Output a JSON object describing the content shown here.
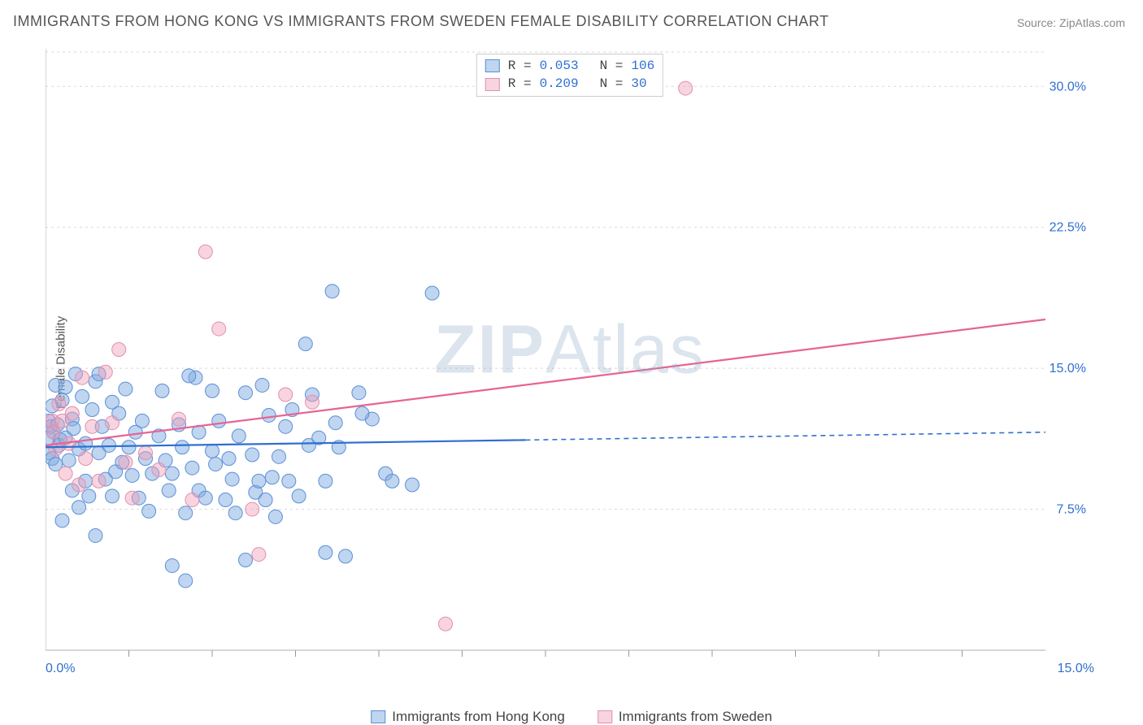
{
  "title": "IMMIGRANTS FROM HONG KONG VS IMMIGRANTS FROM SWEDEN FEMALE DISABILITY CORRELATION CHART",
  "source": "Source: ZipAtlas.com",
  "y_axis_label": "Female Disability",
  "watermark": {
    "part1": "ZIP",
    "part2": "Atlas"
  },
  "chart": {
    "type": "scatter",
    "background_color": "#ffffff",
    "grid_color": "#d8d8d8",
    "border_color": "#bfbfbf",
    "tick_color": "#999",
    "xlim": [
      0,
      15
    ],
    "ylim": [
      0,
      32
    ],
    "x_ticks_labeled": [
      {
        "v": 0.0,
        "label": "0.0%"
      },
      {
        "v": 15.0,
        "label": "15.0%"
      }
    ],
    "x_ticks_minor": [
      1.25,
      2.5,
      3.75,
      5.0,
      6.25,
      7.5,
      8.75,
      10.0,
      11.25,
      12.5,
      13.75
    ],
    "y_ticks": [
      {
        "v": 7.5,
        "label": "7.5%"
      },
      {
        "v": 15.0,
        "label": "15.0%"
      },
      {
        "v": 22.5,
        "label": "22.5%"
      },
      {
        "v": 30.0,
        "label": "30.0%"
      }
    ],
    "series": [
      {
        "name": "Immigrants from Hong Kong",
        "key": "hk",
        "fill": "rgba(128,171,226,0.5)",
        "stroke": "#5c8fd6",
        "trend_color": "#2f6fd0",
        "r": 0.053,
        "n": 106,
        "trend_start": {
          "x": 0,
          "y": 10.8
        },
        "trend_end": {
          "x": 15,
          "y": 11.6
        },
        "solid_until_x": 7.2,
        "points": [
          [
            0.05,
            11.3
          ],
          [
            0.05,
            10.5
          ],
          [
            0.05,
            12.2
          ],
          [
            0.08,
            11.9
          ],
          [
            0.1,
            10.2
          ],
          [
            0.1,
            13.0
          ],
          [
            0.12,
            11.6
          ],
          [
            0.15,
            9.9
          ],
          [
            0.15,
            14.1
          ],
          [
            0.18,
            12.0
          ],
          [
            0.2,
            10.9
          ],
          [
            0.22,
            11.2
          ],
          [
            0.25,
            13.3
          ],
          [
            0.25,
            6.9
          ],
          [
            0.3,
            14.0
          ],
          [
            0.3,
            11.3
          ],
          [
            0.35,
            10.1
          ],
          [
            0.4,
            12.3
          ],
          [
            0.4,
            8.5
          ],
          [
            0.42,
            11.8
          ],
          [
            0.45,
            14.7
          ],
          [
            0.5,
            10.7
          ],
          [
            0.5,
            7.6
          ],
          [
            0.55,
            13.5
          ],
          [
            0.6,
            11.0
          ],
          [
            0.6,
            9.0
          ],
          [
            0.65,
            8.2
          ],
          [
            0.7,
            12.8
          ],
          [
            0.75,
            14.3
          ],
          [
            0.75,
            6.1
          ],
          [
            0.8,
            14.7
          ],
          [
            0.8,
            10.5
          ],
          [
            0.85,
            11.9
          ],
          [
            0.9,
            9.1
          ],
          [
            0.95,
            10.9
          ],
          [
            1.0,
            13.2
          ],
          [
            1.0,
            8.2
          ],
          [
            1.05,
            9.5
          ],
          [
            1.1,
            12.6
          ],
          [
            1.15,
            10.0
          ],
          [
            1.2,
            13.9
          ],
          [
            1.25,
            10.8
          ],
          [
            1.3,
            9.3
          ],
          [
            1.35,
            11.6
          ],
          [
            1.4,
            8.1
          ],
          [
            1.45,
            12.2
          ],
          [
            1.5,
            10.2
          ],
          [
            1.55,
            7.4
          ],
          [
            1.6,
            9.4
          ],
          [
            1.7,
            11.4
          ],
          [
            1.75,
            13.8
          ],
          [
            1.8,
            10.1
          ],
          [
            1.85,
            8.5
          ],
          [
            1.9,
            9.4
          ],
          [
            1.9,
            4.5
          ],
          [
            2.0,
            12.0
          ],
          [
            2.05,
            10.8
          ],
          [
            2.1,
            7.3
          ],
          [
            2.1,
            3.7
          ],
          [
            2.2,
            9.7
          ],
          [
            2.25,
            14.5
          ],
          [
            2.3,
            11.6
          ],
          [
            2.3,
            8.5
          ],
          [
            2.4,
            8.1
          ],
          [
            2.5,
            10.6
          ],
          [
            2.5,
            13.8
          ],
          [
            2.55,
            9.9
          ],
          [
            2.6,
            12.2
          ],
          [
            2.7,
            8.0
          ],
          [
            2.75,
            10.2
          ],
          [
            2.8,
            9.1
          ],
          [
            2.85,
            7.3
          ],
          [
            2.9,
            11.4
          ],
          [
            3.0,
            13.7
          ],
          [
            3.0,
            4.8
          ],
          [
            3.1,
            10.4
          ],
          [
            3.15,
            8.4
          ],
          [
            3.2,
            9.0
          ],
          [
            3.3,
            8.0
          ],
          [
            3.35,
            12.5
          ],
          [
            3.4,
            9.2
          ],
          [
            3.45,
            7.1
          ],
          [
            3.5,
            10.3
          ],
          [
            3.6,
            11.9
          ],
          [
            3.65,
            9.0
          ],
          [
            3.7,
            12.8
          ],
          [
            3.8,
            8.2
          ],
          [
            3.9,
            16.3
          ],
          [
            3.95,
            10.9
          ],
          [
            4.0,
            13.6
          ],
          [
            4.1,
            11.3
          ],
          [
            4.2,
            9.0
          ],
          [
            4.2,
            5.2
          ],
          [
            4.3,
            19.1
          ],
          [
            4.35,
            12.1
          ],
          [
            4.4,
            10.8
          ],
          [
            4.5,
            5.0
          ],
          [
            4.9,
            12.3
          ],
          [
            5.1,
            9.4
          ],
          [
            5.2,
            9.0
          ],
          [
            5.5,
            8.8
          ],
          [
            5.8,
            19.0
          ],
          [
            4.7,
            13.7
          ],
          [
            4.75,
            12.6
          ],
          [
            3.25,
            14.1
          ],
          [
            2.15,
            14.6
          ]
        ]
      },
      {
        "name": "Immigrants from Sweden",
        "key": "se",
        "fill": "rgba(240,160,185,0.45)",
        "stroke": "#e090af",
        "trend_color": "#e66493",
        "r": 0.209,
        "n": 30,
        "trend_start": {
          "x": 0,
          "y": 10.9
        },
        "trend_end": {
          "x": 15,
          "y": 17.6
        },
        "solid_until_x": 15,
        "points": [
          [
            0.1,
            12.2
          ],
          [
            0.12,
            11.6
          ],
          [
            0.15,
            10.7
          ],
          [
            0.2,
            13.1
          ],
          [
            0.25,
            12.2
          ],
          [
            0.3,
            9.4
          ],
          [
            0.35,
            11.0
          ],
          [
            0.4,
            12.6
          ],
          [
            0.5,
            8.8
          ],
          [
            0.55,
            14.5
          ],
          [
            0.6,
            10.2
          ],
          [
            0.7,
            11.9
          ],
          [
            0.8,
            9.0
          ],
          [
            0.9,
            14.8
          ],
          [
            1.0,
            12.1
          ],
          [
            1.1,
            16.0
          ],
          [
            1.2,
            10.0
          ],
          [
            1.3,
            8.1
          ],
          [
            1.5,
            10.5
          ],
          [
            1.7,
            9.6
          ],
          [
            2.0,
            12.3
          ],
          [
            2.2,
            8.0
          ],
          [
            2.4,
            21.2
          ],
          [
            2.6,
            17.1
          ],
          [
            3.1,
            7.5
          ],
          [
            3.2,
            5.1
          ],
          [
            3.6,
            13.6
          ],
          [
            4.0,
            13.2
          ],
          [
            6.0,
            1.4
          ],
          [
            9.6,
            29.9
          ]
        ]
      }
    ],
    "legend_top": [
      {
        "series": "hk",
        "r_label": "R =",
        "r_val": "0.053",
        "n_label": "N =",
        "n_val": "106"
      },
      {
        "series": "se",
        "r_label": "R =",
        "r_val": "0.209",
        "n_label": "N =",
        "n_val": " 30"
      }
    ]
  },
  "legend_bottom": [
    {
      "series": "hk",
      "label": "Immigrants from Hong Kong"
    },
    {
      "series": "se",
      "label": "Immigrants from Sweden"
    }
  ]
}
